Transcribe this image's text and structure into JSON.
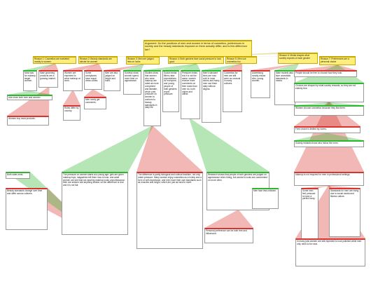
{
  "nodes": [
    {
      "label": "Argument: Do the positions of men and women in terms of cosmetics, preferences in society and the beauty standards imposed on them actually differ, and is this difference fair?"
    },
    {
      "label": "Reason 1: Cosmetics are marketed mostly to women"
    },
    {
      "label": "Reason 2: Beauty standards are stricter for women"
    },
    {
      "label": "Reason 3: Men are judged less on looks"
    },
    {
      "label": "Reason 4: Both genders face social pressure to look good"
    },
    {
      "label": "Reason 5: Men use cosmetics too"
    },
    {
      "label": "Reason 6: Media shapes what society expects of each gender"
    },
    {
      "label": "Reason 7: Preferences are a personal choice"
    },
    {
      "label": "Most ads for makeup target women."
    },
    {
      "label": "Male grooming products are a growing market."
    },
    {
      "label": "Women are expected to wear makeup at work."
    },
    {
      "label": "Some workplaces have equal dress codes."
    },
    {
      "label": "Men are also judged on height and build."
    },
    {
      "label": "Surveys show women spend more time on appearance."
    },
    {
      "label": "Studies show that women who wear makeup are rated as more competent and likeable, which puts pressure on women to conform to beauty standards in daily life."
    },
    {
      "label": "Social media filters raise expectations for everyone, and young people of both genders report pressure."
    },
    {
      "label": "Pressure exists but it is not the same: women receive more comments on their looks than men do, both online and offline."
    },
    {
      "label": "Men's skincare lines are now sold in most stores and many men use them daily without stigma."
    },
    {
      "label": "Cosmetics for men are still seen as unusual in many cultures."
    },
    {
      "label": "Advertising mostly shows slim, young women."
    },
    {
      "label": "Male models also face unrealistic standards in media."
    },
    {
      "label": "People should be free to choose how they look."
    },
    {
      "label": "Choices are shaped by what society rewards, so they are not entirely free."
    },
    {
      "label": "Ads show both men and women."
    },
    {
      "label": "Women buy most products."
    },
    {
      "label": "Men rarely get comments."
    },
    {
      "label": "Rules differ by country."
    },
    {
      "label": "Free choice is limited by norms."
    },
    {
      "label": "The pressure on women starts at a young age: girls are given makeup toys, magazines tell them how to look, and adult women are told that not wearing makeup looks unprofessional. Men are seldom told anything similar, so the difference is real and it is not fair."
    },
    {
      "label": "The difference is partly biological and cultural tradition, not only unfair pressure. Many women enjoy cosmetics as a hobby and a form of self-expression, and men have their own standards such as muscles and height, which are just as hard to meet."
    },
    {
      "label": "Beauty standards change over time and differ across cultures."
    },
    {
      "label": "Both sides exist."
    },
    {
      "label": "Research shows that people of both genders are judged on appearance when hiring, but women's looks are commented on more often."
    },
    {
      "label": "Makeup is not required for men in professional settings."
    },
    {
      "label": "Some men feel pressure to have a perfect body."
    },
    {
      "label": "Standards for men are rising due to social media and fitness culture."
    },
    {
      "label": "In many jobs women are still expected to look polished while men only need to be neat."
    },
    {
      "label": "Personal preference can be both free and influenced."
    },
    {
      "label": "Men face less criticism."
    },
    {
      "label": "Women choose cosmetics because they like them."
    },
    {
      "label": "Society rewards those who follow the norm."
    }
  ]
}
